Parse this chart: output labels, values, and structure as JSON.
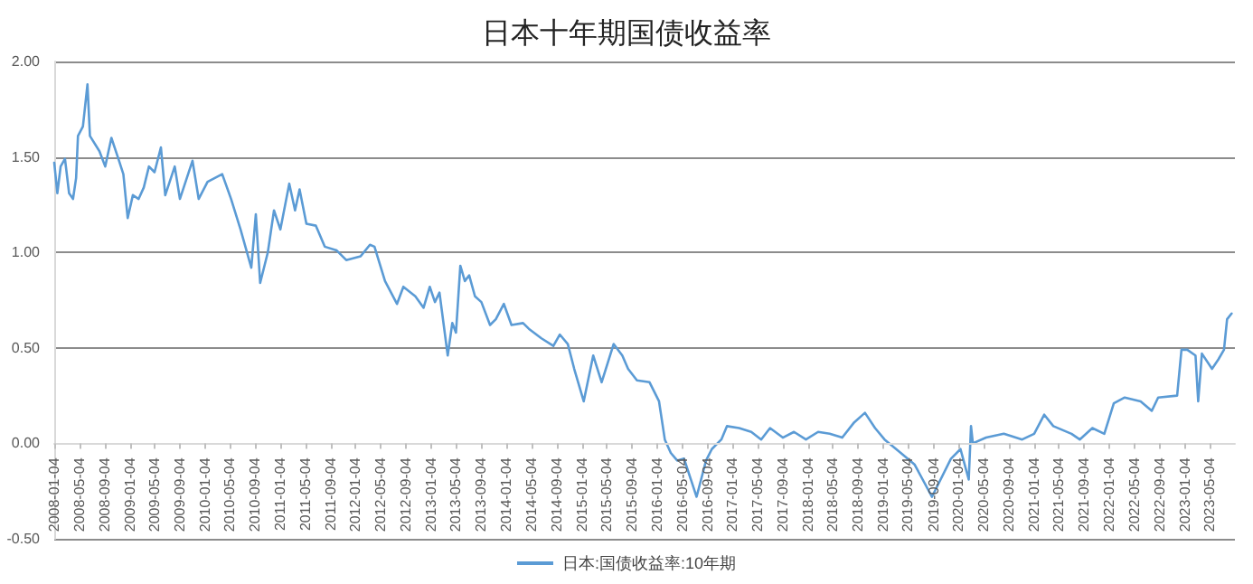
{
  "chart_data": {
    "type": "line",
    "title": "日本十年期国债收益率",
    "x": [
      "2008-01-04",
      "2008-01-19",
      "2008-02-04",
      "2008-02-25",
      "2008-03-16",
      "2008-04-04",
      "2008-04-19",
      "2008-04-28",
      "2008-05-22",
      "2008-06-13",
      "2008-06-25",
      "2008-08-10",
      "2008-09-07",
      "2008-10-07",
      "2008-11-07",
      "2008-12-04",
      "2008-12-25",
      "2009-01-19",
      "2009-02-16",
      "2009-03-13",
      "2009-04-07",
      "2009-05-04",
      "2009-06-04",
      "2009-06-25",
      "2009-08-10",
      "2009-09-04",
      "2009-11-04",
      "2009-12-04",
      "2010-01-16",
      "2010-03-28",
      "2010-05-10",
      "2010-06-25",
      "2010-08-16",
      "2010-09-07",
      "2010-09-28",
      "2010-11-04",
      "2010-12-04",
      "2011-01-04",
      "2011-02-16",
      "2011-03-16",
      "2011-04-07",
      "2011-05-10",
      "2011-06-25",
      "2011-08-07",
      "2011-10-04",
      "2011-11-19",
      "2012-01-28",
      "2012-03-13",
      "2012-04-04",
      "2012-05-25",
      "2012-07-22",
      "2012-08-22",
      "2012-10-19",
      "2012-11-28",
      "2012-12-28",
      "2013-01-22",
      "2013-02-13",
      "2013-03-25",
      "2013-04-16",
      "2013-05-04",
      "2013-05-25",
      "2013-06-16",
      "2013-07-07",
      "2013-08-04",
      "2013-09-04",
      "2013-10-16",
      "2013-11-13",
      "2013-12-22",
      "2014-01-28",
      "2014-03-25",
      "2014-04-22",
      "2014-06-22",
      "2014-08-19",
      "2014-09-19",
      "2014-10-28",
      "2014-11-28",
      "2015-01-13",
      "2015-02-28",
      "2015-04-10",
      "2015-06-07",
      "2015-07-19",
      "2015-08-16",
      "2015-09-28",
      "2015-11-28",
      "2016-01-13",
      "2016-02-10",
      "2016-03-10",
      "2016-04-10",
      "2016-05-13",
      "2016-07-13",
      "2016-08-28",
      "2016-09-25",
      "2016-11-10",
      "2016-12-07",
      "2017-02-04",
      "2017-04-04",
      "2017-05-22",
      "2017-07-04",
      "2017-09-04",
      "2017-10-28",
      "2017-12-25",
      "2018-02-22",
      "2018-04-19",
      "2018-06-19",
      "2018-08-16",
      "2018-10-07",
      "2018-11-25",
      "2019-01-10",
      "2019-03-07",
      "2019-06-04",
      "2019-08-28",
      "2019-11-28",
      "2020-01-13",
      "2020-02-22",
      "2020-03-04",
      "2020-03-13",
      "2020-05-16",
      "2020-08-10",
      "2020-11-07",
      "2021-01-04",
      "2021-02-22",
      "2021-04-07",
      "2021-07-04",
      "2021-08-13",
      "2021-10-13",
      "2021-12-10",
      "2022-01-25",
      "2022-03-19",
      "2022-06-04",
      "2022-07-28",
      "2022-08-28",
      "2022-11-28",
      "2022-12-19",
      "2023-01-16",
      "2023-02-25",
      "2023-03-10",
      "2023-03-28",
      "2023-05-16",
      "2023-06-16",
      "2023-07-13",
      "2023-07-28",
      "2023-08-19"
    ],
    "series": [
      {
        "name": "日本:国债收益率:10年期",
        "color": "#5b9bd5",
        "values": [
          1.47,
          1.31,
          1.45,
          1.49,
          1.31,
          1.28,
          1.39,
          1.61,
          1.66,
          1.88,
          1.61,
          1.53,
          1.45,
          1.6,
          1.5,
          1.41,
          1.18,
          1.3,
          1.28,
          1.34,
          1.45,
          1.42,
          1.55,
          1.3,
          1.45,
          1.28,
          1.48,
          1.28,
          1.37,
          1.41,
          1.28,
          1.12,
          0.92,
          1.2,
          0.84,
          1.0,
          1.22,
          1.12,
          1.36,
          1.22,
          1.33,
          1.15,
          1.14,
          1.03,
          1.01,
          0.96,
          0.98,
          1.04,
          1.03,
          0.85,
          0.73,
          0.82,
          0.77,
          0.71,
          0.82,
          0.74,
          0.79,
          0.46,
          0.63,
          0.58,
          0.93,
          0.85,
          0.88,
          0.77,
          0.74,
          0.62,
          0.65,
          0.73,
          0.62,
          0.63,
          0.6,
          0.55,
          0.51,
          0.57,
          0.52,
          0.39,
          0.22,
          0.46,
          0.32,
          0.52,
          0.46,
          0.39,
          0.33,
          0.32,
          0.22,
          0.02,
          -0.05,
          -0.09,
          -0.08,
          -0.28,
          -0.09,
          -0.03,
          0.02,
          0.09,
          0.08,
          0.06,
          0.02,
          0.08,
          0.03,
          0.06,
          0.02,
          0.06,
          0.05,
          0.03,
          0.11,
          0.16,
          0.08,
          0.02,
          -0.03,
          -0.11,
          -0.28,
          -0.08,
          -0.03,
          -0.19,
          0.09,
          0.0,
          0.03,
          0.05,
          0.02,
          0.05,
          0.15,
          0.09,
          0.05,
          0.02,
          0.08,
          0.05,
          0.21,
          0.24,
          0.22,
          0.17,
          0.24,
          0.25,
          0.49,
          0.49,
          0.46,
          0.22,
          0.47,
          0.39,
          0.44,
          0.49,
          0.65,
          0.68
        ]
      }
    ],
    "xlim": [
      "2008-01-04",
      "2023-09-04"
    ],
    "xticks": [
      "2008-01-04",
      "2008-05-04",
      "2008-09-04",
      "2009-01-04",
      "2009-05-04",
      "2009-09-04",
      "2010-01-04",
      "2010-05-04",
      "2010-09-04",
      "2011-01-04",
      "2011-05-04",
      "2011-09-04",
      "2012-01-04",
      "2012-05-04",
      "2012-09-04",
      "2013-01-04",
      "2013-05-04",
      "2013-09-04",
      "2014-01-04",
      "2014-05-04",
      "2014-09-04",
      "2015-01-04",
      "2015-05-04",
      "2015-09-04",
      "2016-01-04",
      "2016-05-04",
      "2016-09-04",
      "2017-01-04",
      "2017-05-04",
      "2017-09-04",
      "2018-01-04",
      "2018-05-04",
      "2018-09-04",
      "2019-01-04",
      "2019-05-04",
      "2019-09-04",
      "2020-01-04",
      "2020-05-04",
      "2020-09-04",
      "2021-01-04",
      "2021-05-04",
      "2021-09-04",
      "2022-01-04",
      "2022-05-04",
      "2022-09-04",
      "2023-01-04",
      "2023-05-04"
    ],
    "ylim": [
      -0.5,
      2
    ],
    "yticks": [
      {
        "value": -0.5,
        "label": "-0.50"
      },
      {
        "value": 0,
        "label": "0.00"
      },
      {
        "value": 0.5,
        "label": "0.50"
      },
      {
        "value": 1,
        "label": "1.00"
      },
      {
        "value": 1.5,
        "label": "1.50"
      },
      {
        "value": 2,
        "label": "2.00"
      }
    ],
    "grid": "y",
    "legend": "bottom",
    "marker": "none",
    "line_style": "solid"
  }
}
